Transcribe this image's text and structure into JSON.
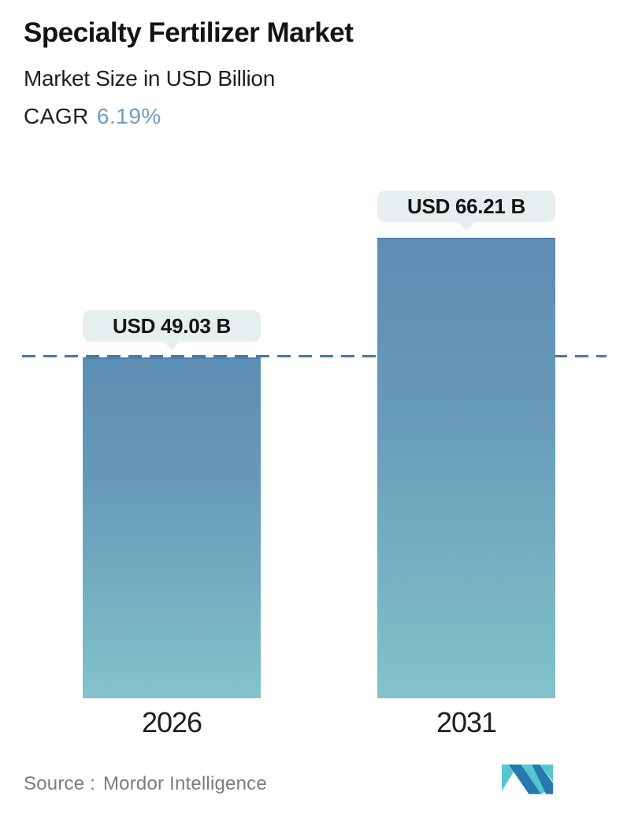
{
  "header": {
    "title": "Specialty Fertilizer Market",
    "subtitle": "Market Size in USD Billion",
    "cagr_label": "CAGR",
    "cagr_value": "6.19%"
  },
  "chart_data": {
    "type": "bar",
    "categories": [
      "2026",
      "2031"
    ],
    "values": [
      49.03,
      66.21
    ],
    "value_labels": [
      "USD 49.03 B",
      "USD 66.21 B"
    ],
    "title": "Specialty Fertilizer Market",
    "subtitle": "Market Size in USD Billion",
    "unit": "USD Billion",
    "ylim": [
      0,
      66.21
    ],
    "grid": false,
    "legend": "none",
    "reference_line": {
      "value": 49.03,
      "style": "dashed",
      "color": "#467aa3"
    },
    "bar_gradient_top": "#5d8eb4",
    "bar_gradient_bottom": "#82c3ca"
  },
  "footer": {
    "source_label": "Source :",
    "source_value": "Mordor Intelligence"
  },
  "colors": {
    "accent_blue": "#6f9dc4",
    "dashed_line": "#467aa3",
    "callout_bg": "#e7eef0",
    "text_dark": "#141414",
    "text_gray": "#7c7c7c",
    "logo_teal": "#55c7d2",
    "logo_blue": "#2579ae"
  }
}
